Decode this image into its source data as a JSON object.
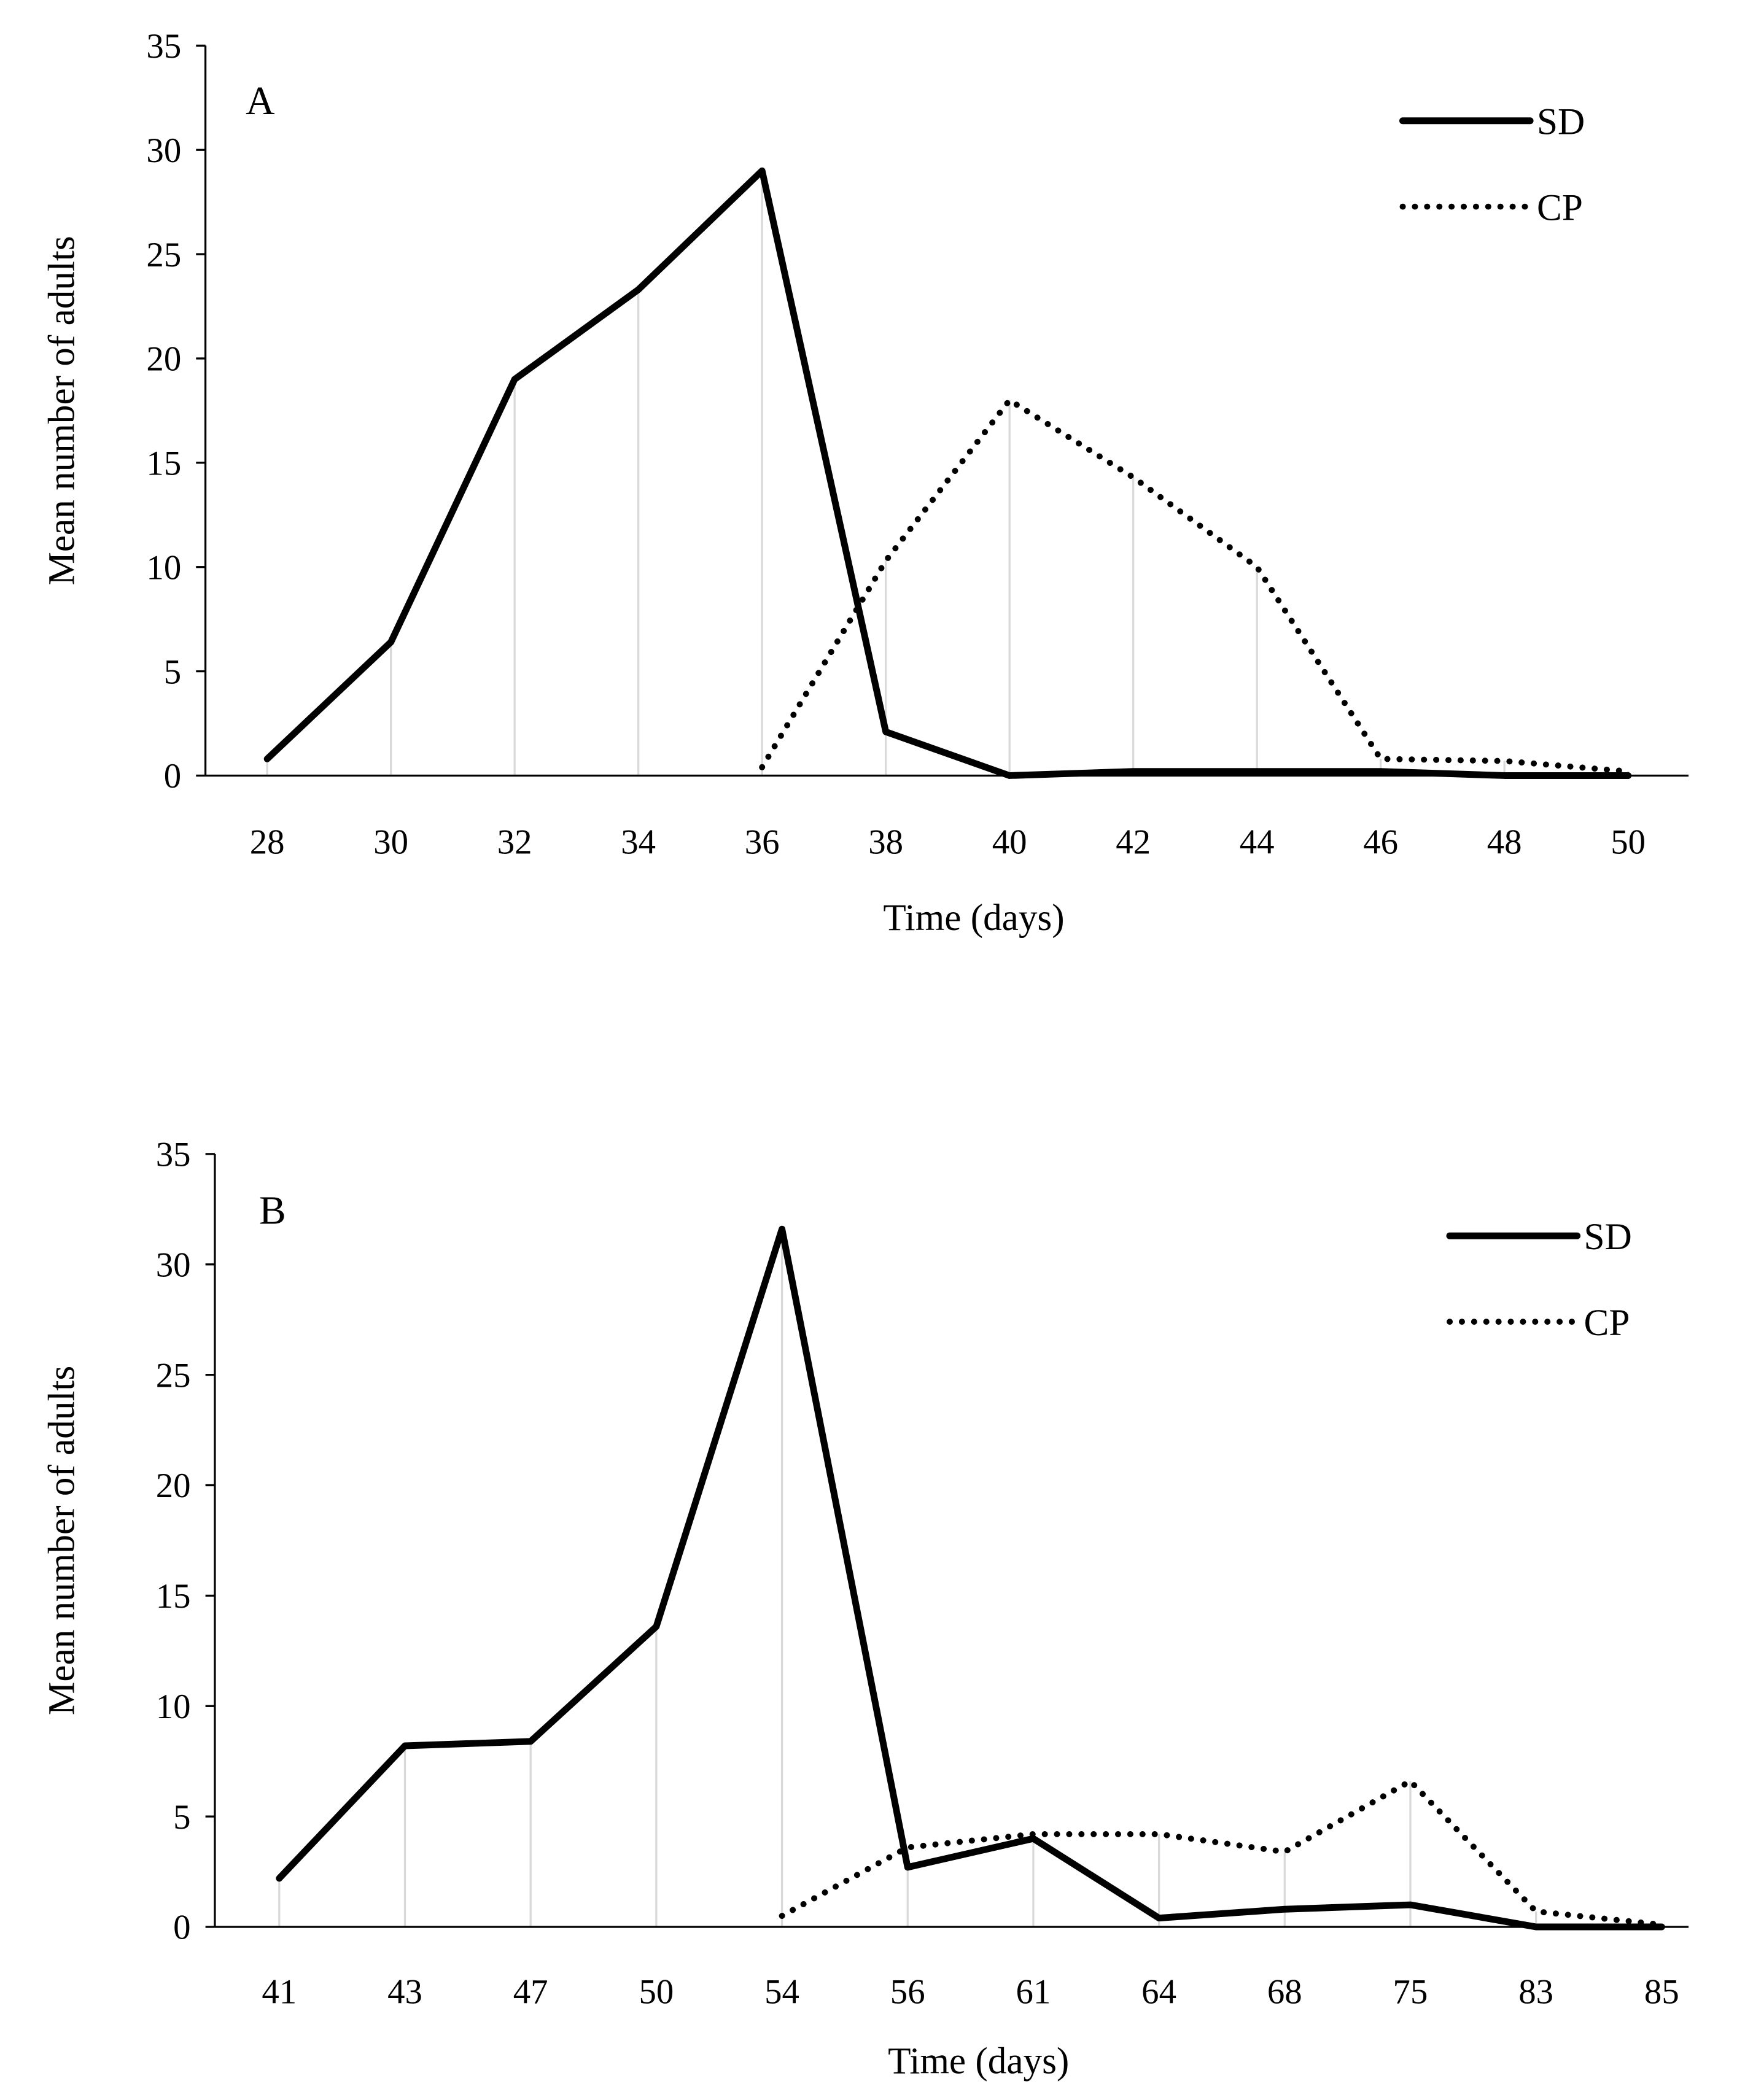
{
  "chart_data": [
    {
      "type": "line",
      "panel_label": "A",
      "xlabel": "Time (days)",
      "ylabel": "Mean number of adults",
      "ylim": [
        0,
        35
      ],
      "yticks": [
        0,
        5,
        10,
        15,
        20,
        25,
        30,
        35
      ],
      "categories": [
        "28",
        "30",
        "32",
        "34",
        "36",
        "38",
        "40",
        "42",
        "44",
        "46",
        "48",
        "50"
      ],
      "legend_position": "top-right",
      "series": [
        {
          "name": "SD",
          "style": "solid",
          "values": [
            0.8,
            6.4,
            19.0,
            23.3,
            29.0,
            2.1,
            0.0,
            0.2,
            0.2,
            0.2,
            0.0,
            0.0
          ]
        },
        {
          "name": "CP",
          "style": "dotted",
          "values": [
            null,
            null,
            null,
            null,
            0.4,
            10.3,
            18.0,
            14.3,
            10.0,
            0.8,
            0.7,
            0.2
          ]
        }
      ]
    },
    {
      "type": "line",
      "panel_label": "B",
      "xlabel": "Time (days)",
      "ylabel": "Mean number of adults",
      "ylim": [
        0,
        35
      ],
      "yticks": [
        0,
        5,
        10,
        15,
        20,
        25,
        30,
        35
      ],
      "categories": [
        "41",
        "43",
        "47",
        "50",
        "54",
        "56",
        "61",
        "64",
        "68",
        "75",
        "83",
        "85"
      ],
      "legend_position": "top-right",
      "series": [
        {
          "name": "SD",
          "style": "solid",
          "values": [
            2.2,
            8.2,
            8.4,
            13.6,
            31.6,
            2.7,
            4.0,
            0.4,
            0.8,
            1.0,
            0.0,
            0.0
          ]
        },
        {
          "name": "CP",
          "style": "dotted",
          "values": [
            null,
            null,
            null,
            null,
            0.5,
            3.6,
            4.2,
            4.2,
            3.4,
            6.6,
            0.7,
            0.1
          ]
        }
      ]
    }
  ]
}
